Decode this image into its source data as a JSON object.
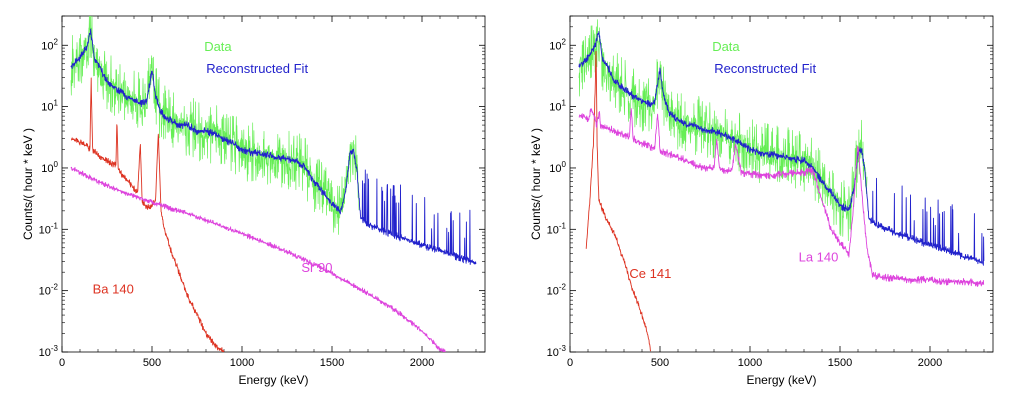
{
  "chart_data": [
    {
      "type": "line",
      "title": "",
      "xlabel": "Energy (keV)",
      "ylabel": "Counts/( hour * keV )",
      "xlim": [
        0,
        2350
      ],
      "ylim": [
        0.001,
        300
      ],
      "yscale": "log",
      "grid": false,
      "x_ticks": [
        0,
        500,
        1000,
        1500,
        2000
      ],
      "x_tick_labels": [
        "0",
        "500",
        "1000",
        "1500",
        "2000"
      ],
      "y_ticks": [
        0.001,
        0.01,
        0.1,
        1,
        10,
        100
      ],
      "y_tick_labels": [
        {
          "base": "10",
          "exp": "-3"
        },
        {
          "base": "10",
          "exp": "-2"
        },
        {
          "base": "10",
          "exp": "-1"
        },
        {
          "base": "10",
          "exp": "0"
        },
        {
          "base": "10",
          "exp": "1"
        },
        {
          "base": "10",
          "exp": "2"
        }
      ],
      "series": [
        {
          "name": "Data",
          "color": "#66ee55",
          "noise": 0.5,
          "x": [
            50,
            80,
            110,
            140,
            160,
            180,
            210,
            240,
            280,
            320,
            350,
            380,
            410,
            440,
            470,
            500,
            520,
            550,
            600,
            650,
            700,
            750,
            800,
            850,
            900,
            950,
            1000,
            1050,
            1100,
            1150,
            1200,
            1250,
            1300,
            1350,
            1400,
            1450,
            1500,
            1550,
            1580,
            1600,
            1620,
            1640,
            1650
          ],
          "y": [
            45,
            55,
            70,
            100,
            160,
            60,
            45,
            28,
            22,
            18,
            15,
            14,
            12,
            11,
            12,
            40,
            15,
            8,
            6,
            5,
            5,
            4,
            4,
            3.5,
            3,
            2.5,
            2,
            1.8,
            1.7,
            1.6,
            1.5,
            1.4,
            1.3,
            1.0,
            0.6,
            0.4,
            0.25,
            0.2,
            0.5,
            1.8,
            2.0,
            0.8,
            0.3
          ]
        },
        {
          "name": "Reconstructed Fit",
          "color": "#2222cc",
          "noise": 0.06,
          "spikes": true,
          "x": [
            50,
            80,
            110,
            140,
            160,
            180,
            210,
            240,
            280,
            320,
            350,
            380,
            410,
            440,
            470,
            500,
            520,
            550,
            600,
            650,
            700,
            750,
            800,
            850,
            900,
            950,
            1000,
            1050,
            1100,
            1150,
            1200,
            1250,
            1300,
            1350,
            1400,
            1450,
            1500,
            1550,
            1580,
            1600,
            1620,
            1640,
            1660,
            1700,
            1800,
            1900,
            2000,
            2100,
            2200,
            2300
          ],
          "y": [
            45,
            55,
            70,
            100,
            170,
            60,
            45,
            28,
            22,
            18,
            15,
            14,
            12,
            11,
            12,
            40,
            15,
            8,
            6,
            5,
            5,
            4,
            4,
            3.5,
            3,
            2.5,
            2,
            1.8,
            1.7,
            1.6,
            1.5,
            1.4,
            1.3,
            1.0,
            0.6,
            0.4,
            0.25,
            0.2,
            0.5,
            1.8,
            2.0,
            0.8,
            0.15,
            0.12,
            0.09,
            0.07,
            0.055,
            0.045,
            0.035,
            0.028
          ]
        },
        {
          "name": "Ba 140",
          "color": "#dd3322",
          "noise": 0.05,
          "x": [
            50,
            100,
            140,
            155,
            162,
            170,
            200,
            250,
            300,
            305,
            312,
            330,
            380,
            420,
            435,
            445,
            460,
            490,
            520,
            535,
            550,
            570,
            600,
            650,
            700,
            750,
            800,
            850,
            900
          ],
          "y": [
            3.0,
            2.6,
            2.3,
            2.0,
            30,
            2.0,
            1.6,
            1.3,
            1.1,
            6,
            1.0,
            0.8,
            0.55,
            0.4,
            2.5,
            0.3,
            0.25,
            0.22,
            0.3,
            4,
            0.2,
            0.1,
            0.05,
            0.02,
            0.008,
            0.004,
            0.002,
            0.0013,
            0.001
          ]
        },
        {
          "name": "Sr 90",
          "color": "#dd44dd",
          "noise": 0.04,
          "x": [
            50,
            100,
            200,
            300,
            400,
            500,
            600,
            700,
            800,
            900,
            1000,
            1100,
            1200,
            1300,
            1400,
            1500,
            1600,
            1700,
            1800,
            1900,
            2000,
            2050,
            2100,
            2130
          ],
          "y": [
            1.0,
            0.85,
            0.6,
            0.45,
            0.35,
            0.28,
            0.22,
            0.18,
            0.14,
            0.11,
            0.085,
            0.065,
            0.05,
            0.037,
            0.027,
            0.019,
            0.013,
            0.009,
            0.006,
            0.0038,
            0.0022,
            0.0016,
            0.0011,
            0.001
          ]
        }
      ],
      "legend": [
        {
          "label": "Data",
          "color": "#66ee55"
        },
        {
          "label": "Reconstructed Fit",
          "color": "#2222cc"
        }
      ],
      "annotations": [
        {
          "text": "Ba 140",
          "color": "#dd3322",
          "x": 170,
          "y": 0.009
        },
        {
          "text": "Sr 90",
          "color": "#dd44dd",
          "x": 1330,
          "y": 0.02
        }
      ],
      "legend_anchor": {
        "x": 790,
        "y": 70
      }
    },
    {
      "type": "line",
      "title": "",
      "xlabel": "Energy (keV)",
      "ylabel": "Counts/( hour * keV )",
      "xlim": [
        0,
        2350
      ],
      "ylim": [
        0.001,
        300
      ],
      "yscale": "log",
      "grid": false,
      "x_ticks": [
        0,
        500,
        1000,
        1500,
        2000
      ],
      "x_tick_labels": [
        "0",
        "500",
        "1000",
        "1500",
        "2000"
      ],
      "y_ticks": [
        0.001,
        0.01,
        0.1,
        1,
        10,
        100
      ],
      "y_tick_labels": [
        {
          "base": "10",
          "exp": "-3"
        },
        {
          "base": "10",
          "exp": "-2"
        },
        {
          "base": "10",
          "exp": "-1"
        },
        {
          "base": "10",
          "exp": "0"
        },
        {
          "base": "10",
          "exp": "1"
        },
        {
          "base": "10",
          "exp": "2"
        }
      ],
      "series": [
        {
          "name": "Data",
          "color": "#66ee55",
          "noise": 0.5,
          "x": [
            50,
            80,
            110,
            140,
            160,
            180,
            210,
            240,
            280,
            320,
            350,
            380,
            410,
            440,
            470,
            500,
            520,
            550,
            600,
            650,
            700,
            750,
            800,
            850,
            900,
            950,
            1000,
            1050,
            1100,
            1150,
            1200,
            1250,
            1300,
            1350,
            1400,
            1450,
            1500,
            1550,
            1580,
            1600,
            1620,
            1640,
            1650
          ],
          "y": [
            45,
            55,
            70,
            100,
            160,
            60,
            45,
            28,
            22,
            18,
            15,
            14,
            12,
            11,
            12,
            40,
            15,
            8,
            6,
            5,
            5,
            4,
            4,
            3.5,
            3,
            2.5,
            2,
            1.8,
            1.7,
            1.6,
            1.5,
            1.4,
            1.3,
            1.0,
            0.6,
            0.4,
            0.25,
            0.2,
            0.5,
            1.8,
            2.0,
            0.8,
            0.3
          ]
        },
        {
          "name": "Reconstructed Fit",
          "color": "#2222cc",
          "noise": 0.06,
          "spikes": true,
          "x": [
            50,
            80,
            110,
            140,
            160,
            180,
            210,
            240,
            280,
            320,
            350,
            380,
            410,
            440,
            470,
            500,
            520,
            550,
            600,
            650,
            700,
            750,
            800,
            850,
            900,
            950,
            1000,
            1050,
            1100,
            1150,
            1200,
            1250,
            1300,
            1350,
            1400,
            1450,
            1500,
            1550,
            1580,
            1600,
            1620,
            1640,
            1660,
            1700,
            1800,
            1900,
            2000,
            2100,
            2200,
            2300
          ],
          "y": [
            45,
            55,
            70,
            100,
            170,
            60,
            45,
            28,
            22,
            18,
            15,
            14,
            12,
            11,
            12,
            40,
            15,
            8,
            6,
            5,
            5,
            4,
            4,
            3.5,
            3,
            2.5,
            2,
            1.8,
            1.7,
            1.6,
            1.5,
            1.4,
            1.3,
            1.0,
            0.6,
            0.4,
            0.25,
            0.2,
            0.5,
            1.8,
            2.0,
            0.8,
            0.15,
            0.12,
            0.09,
            0.07,
            0.055,
            0.045,
            0.035,
            0.028
          ]
        },
        {
          "name": "Ce 141",
          "color": "#dd3322",
          "noise": 0.05,
          "x": [
            90,
            110,
            130,
            140,
            145,
            150,
            160,
            200,
            250,
            300,
            350,
            400,
            430,
            450
          ],
          "y": [
            0.05,
            0.3,
            2.5,
            20,
            100,
            3,
            0.3,
            0.15,
            0.08,
            0.03,
            0.01,
            0.004,
            0.002,
            0.001
          ]
        },
        {
          "name": "La 140",
          "color": "#dd44dd",
          "noise": 0.06,
          "x": [
            50,
            80,
            100,
            120,
            140,
            150,
            162,
            170,
            200,
            250,
            300,
            330,
            340,
            350,
            400,
            450,
            470,
            487,
            500,
            550,
            600,
            650,
            700,
            750,
            800,
            815,
            830,
            870,
            900,
            920,
            950,
            1000,
            1100,
            1200,
            1300,
            1350,
            1400,
            1450,
            1500,
            1550,
            1570,
            1590,
            1600,
            1610,
            1630,
            1650,
            1680,
            1700,
            1800,
            1900,
            2000,
            2100,
            2200,
            2300
          ],
          "y": [
            7,
            6.5,
            6,
            9,
            6,
            5,
            8,
            5,
            4.5,
            4,
            3.5,
            3.2,
            10,
            3.0,
            2.5,
            2.2,
            2.0,
            8,
            1.9,
            1.7,
            1.5,
            1.3,
            1.1,
            1.0,
            1.0,
            3,
            1.0,
            0.9,
            0.9,
            2.5,
            0.85,
            0.8,
            0.75,
            0.8,
            0.85,
            0.9,
            0.3,
            0.1,
            0.06,
            0.04,
            0.15,
            1.0,
            2.5,
            1.0,
            0.2,
            0.05,
            0.018,
            0.017,
            0.016,
            0.015,
            0.015,
            0.014,
            0.014,
            0.013
          ]
        }
      ],
      "legend": [
        {
          "label": "Data",
          "color": "#66ee55"
        },
        {
          "label": "Reconstructed Fit",
          "color": "#2222cc"
        }
      ],
      "annotations": [
        {
          "text": "Ce 141",
          "color": "#dd3322",
          "x": 330,
          "y": 0.016
        },
        {
          "text": "La 140",
          "color": "#dd44dd",
          "x": 1270,
          "y": 0.03
        }
      ],
      "legend_anchor": {
        "x": 790,
        "y": 70
      }
    }
  ]
}
